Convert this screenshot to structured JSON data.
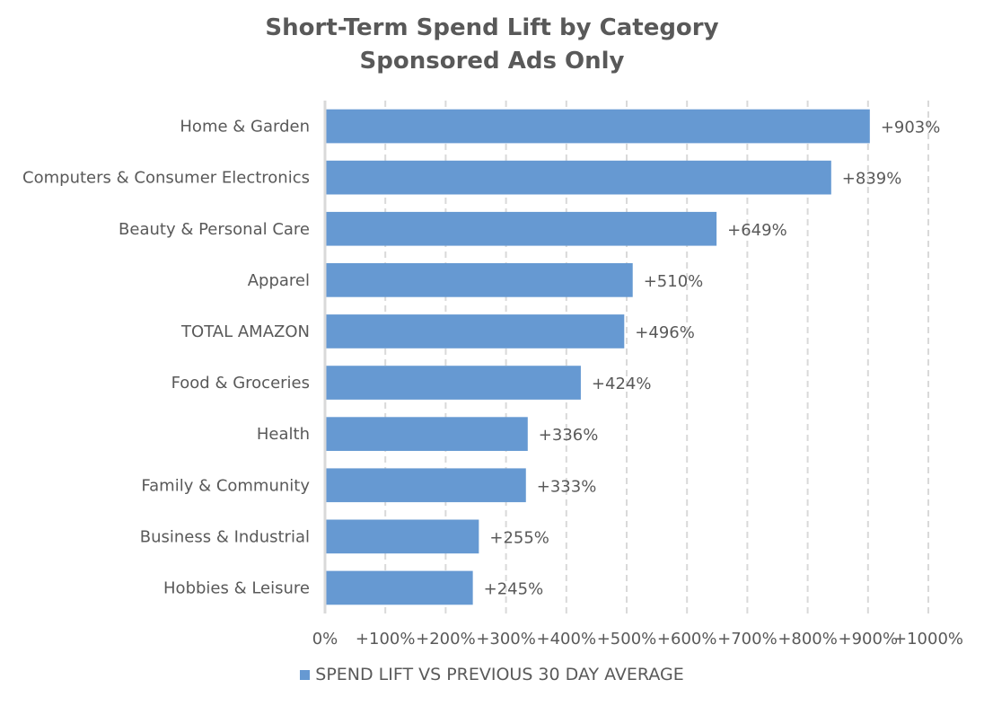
{
  "chart_data": {
    "type": "bar",
    "orientation": "horizontal",
    "title": "Short-Term Spend Lift by Category",
    "subtitle": "Sponsored Ads Only",
    "categories": [
      "Home & Garden",
      "Computers & Consumer Electronics",
      "Beauty & Personal Care",
      "Apparel",
      "TOTAL AMAZON",
      "Food & Groceries",
      "Health",
      "Family & Community",
      "Business & Industrial",
      "Hobbies & Leisure"
    ],
    "series": [
      {
        "name": "SPEND LIFT VS PREVIOUS 30 DAY AVERAGE",
        "values": [
          903,
          839,
          649,
          510,
          496,
          424,
          336,
          333,
          255,
          245
        ],
        "data_labels": [
          "+903%",
          "+839%",
          "+649%",
          "+510%",
          "+496%",
          "+424%",
          "+336%",
          "+333%",
          "+255%",
          "+245%"
        ],
        "color": "#6699d2"
      }
    ],
    "xlim": [
      0,
      1000
    ],
    "x_ticks": [
      0,
      100,
      200,
      300,
      400,
      500,
      600,
      700,
      800,
      900,
      1000
    ],
    "x_tick_labels": [
      "0%",
      "+100%",
      "+200%",
      "+300%",
      "+400%",
      "+500%",
      "+600%",
      "+700%",
      "+800%",
      "+900%",
      "+1000%"
    ],
    "xlabel": "",
    "ylabel": "",
    "grid": "vertical dashed",
    "legend_position": "bottom",
    "colors": {
      "bar": "#6699d2",
      "text": "#595959",
      "grid": "#d9d9d9",
      "axis": "#d9d9d9"
    }
  }
}
